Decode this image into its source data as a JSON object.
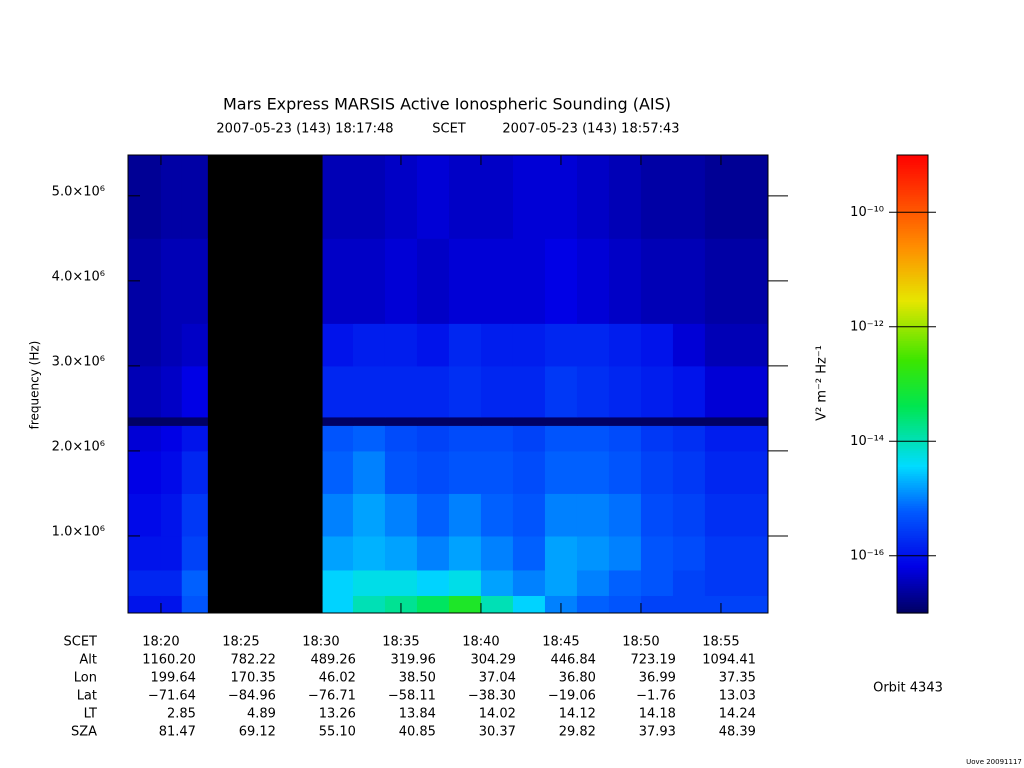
{
  "chart_data": {
    "type": "heatmap",
    "title": "Mars Express MARSIS Active Ionospheric Sounding (AIS)",
    "subtitle": {
      "start": "2007-05-23 (143) 18:17:48",
      "frame": "SCET",
      "end": "2007-05-23 (143) 18:57:43"
    },
    "y_label": "frequency (Hz)",
    "xlim": [
      17.94,
      57.94
    ],
    "xticks": [
      {
        "value": 20,
        "label": "18:20"
      },
      {
        "value": 25,
        "label": "18:25"
      },
      {
        "value": 30,
        "label": "18:30"
      },
      {
        "value": 35,
        "label": "18:35"
      },
      {
        "value": 40,
        "label": "18:40"
      },
      {
        "value": 45,
        "label": "18:45"
      },
      {
        "value": 50,
        "label": "18:50"
      },
      {
        "value": 55,
        "label": "18:55"
      }
    ],
    "ylim": [
      94000,
      5480000
    ],
    "yticks": [
      {
        "value": 1000000,
        "label": "1.0×10⁶"
      },
      {
        "value": 2000000,
        "label": "2.0×10⁶"
      },
      {
        "value": 3000000,
        "label": "3.0×10⁶"
      },
      {
        "value": 4000000,
        "label": "4.0×10⁶"
      },
      {
        "value": 5000000,
        "label": "5.0×10⁶"
      }
    ],
    "xbins": [
      17.94,
      20,
      21.3,
      22.9,
      30.1,
      32,
      34,
      36,
      38,
      40,
      42,
      44,
      46,
      48,
      50,
      52,
      54,
      57.94
    ],
    "ybins": [
      94000,
      300000,
      600000,
      1000000,
      1500000,
      2000000,
      2300000,
      2400000,
      3000000,
      3500000,
      4500000,
      5480000
    ],
    "z": [
      [
        1e-16,
        1e-16,
        5e-16,
        null,
        3.2e-15,
        1e-14,
        1.6e-14,
        3.2e-14,
        1e-13,
        1e-14,
        3.2e-15,
        1e-15,
        6.3e-16,
        5e-16,
        3.2e-16,
        3.2e-16,
        3.2e-16
      ],
      [
        1.6e-16,
        1.6e-16,
        6.3e-16,
        null,
        3.2e-15,
        5e-15,
        5e-15,
        3.2e-15,
        5e-15,
        1.6e-15,
        1e-15,
        1.6e-15,
        1e-15,
        6.3e-16,
        5e-16,
        3.2e-16,
        2.5e-16
      ],
      [
        1e-16,
        1e-16,
        3.2e-16,
        null,
        1.6e-15,
        2e-15,
        1.6e-15,
        1e-15,
        1.6e-15,
        1e-15,
        6.3e-16,
        1.6e-15,
        1.3e-15,
        1e-15,
        5e-16,
        4e-16,
        2.5e-16
      ],
      [
        7.9e-17,
        1e-16,
        2.5e-16,
        null,
        1e-15,
        1.6e-15,
        1e-15,
        6.3e-16,
        1e-15,
        6.3e-16,
        5e-16,
        1e-15,
        1e-15,
        7.9e-16,
        4e-16,
        3.2e-16,
        2e-16
      ],
      [
        6.3e-17,
        7.9e-17,
        1.6e-16,
        null,
        6.3e-16,
        1e-15,
        5e-16,
        4e-16,
        5e-16,
        5e-16,
        4e-16,
        6.3e-16,
        6.3e-16,
        5e-16,
        3.2e-16,
        2.5e-16,
        1.6e-16
      ],
      [
        5e-17,
        6.3e-17,
        1e-16,
        null,
        5e-16,
        6.3e-16,
        4e-16,
        3.2e-16,
        4e-16,
        4e-16,
        3.2e-16,
        5e-16,
        5e-16,
        4e-16,
        2.5e-16,
        2e-16,
        1.3e-16
      ],
      [
        1e-17,
        1e-17,
        1e-17,
        null,
        1e-17,
        1e-17,
        1e-17,
        1e-17,
        1e-17,
        1e-17,
        1e-17,
        1e-17,
        1e-17,
        1e-17,
        1e-17,
        1e-17,
        1e-17
      ],
      [
        3.2e-17,
        4e-17,
        6.3e-17,
        null,
        1.6e-16,
        1.6e-16,
        1.6e-16,
        1.6e-16,
        2e-16,
        1.6e-16,
        1.6e-16,
        2.5e-16,
        2e-16,
        1.6e-16,
        1.3e-16,
        1e-16,
        5e-17
      ],
      [
        2.5e-17,
        3.2e-17,
        4e-17,
        null,
        1e-16,
        1.3e-16,
        1.3e-16,
        1e-16,
        1.6e-16,
        1.3e-16,
        1.3e-16,
        1.6e-16,
        1.6e-16,
        1.3e-16,
        1e-16,
        5e-17,
        3.2e-17
      ],
      [
        2.5e-17,
        3.2e-17,
        3.2e-17,
        null,
        4e-17,
        4e-17,
        5e-17,
        4e-17,
        5e-17,
        5e-17,
        5e-17,
        6.3e-17,
        5e-17,
        4e-17,
        3.2e-17,
        3.2e-17,
        2.5e-17
      ],
      [
        2e-17,
        2.5e-17,
        2.5e-17,
        null,
        3.2e-17,
        3.2e-17,
        4e-17,
        5e-17,
        4e-17,
        4e-17,
        5e-17,
        5e-17,
        4e-17,
        3.2e-17,
        2.5e-17,
        2.5e-17,
        2e-17
      ]
    ],
    "colorbar": {
      "label": "V² m⁻² Hz⁻¹",
      "log": true,
      "clim": [
        1e-17,
        1e-09
      ],
      "ticks": [
        {
          "value": 1e-10,
          "label": "10⁻¹⁰"
        },
        {
          "value": 1e-12,
          "label": "10⁻¹²"
        },
        {
          "value": 1e-14,
          "label": "10⁻¹⁴"
        },
        {
          "value": 1e-16,
          "label": "10⁻¹⁶"
        }
      ]
    },
    "ephemeris": {
      "time_label": "SCET",
      "rows": [
        {
          "label": "Alt",
          "values": [
            "1160.20",
            "782.22",
            "489.26",
            "319.96",
            "304.29",
            "446.84",
            "723.19",
            "1094.41"
          ]
        },
        {
          "label": "Lon",
          "values": [
            "199.64",
            "170.35",
            "46.02",
            "38.50",
            "37.04",
            "36.80",
            "36.99",
            "37.35"
          ]
        },
        {
          "label": "Lat",
          "values": [
            "−71.64",
            "−84.96",
            "−76.71",
            "−58.11",
            "−38.30",
            "−19.06",
            "−1.76",
            "13.03"
          ]
        },
        {
          "label": "LT",
          "values": [
            "2.85",
            "4.89",
            "13.26",
            "13.84",
            "14.02",
            "14.12",
            "14.18",
            "14.24"
          ]
        },
        {
          "label": "SZA",
          "values": [
            "81.47",
            "69.12",
            "55.10",
            "40.85",
            "30.37",
            "29.82",
            "37.93",
            "48.39"
          ]
        }
      ]
    },
    "orbit": "Orbit 4343",
    "footer": "Uove 20091117"
  }
}
